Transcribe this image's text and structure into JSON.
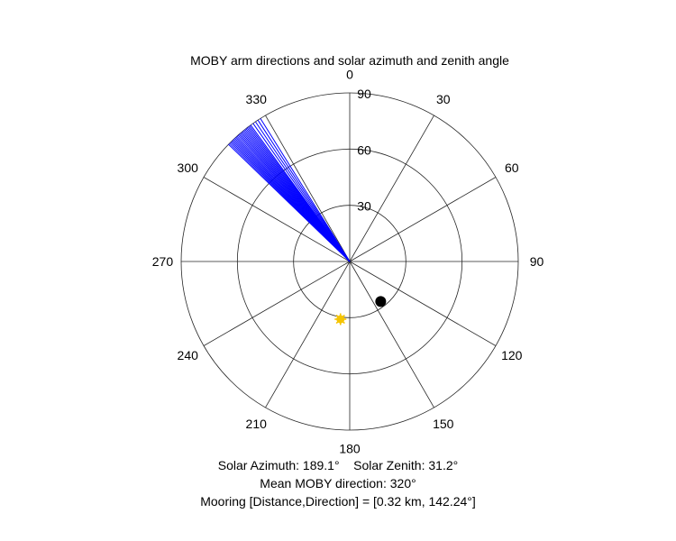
{
  "chart_data": {
    "type": "polar",
    "title": "MOBY arm directions and solar azimuth and zenith angle",
    "angle_ticks": [
      "0",
      "30",
      "60",
      "90",
      "120",
      "150",
      "180",
      "210",
      "240",
      "270",
      "300",
      "330"
    ],
    "radius_ticks": [
      "30",
      "60",
      "90"
    ],
    "radius_max": 90,
    "arm_directions_deg": [
      314,
      314.5,
      315,
      315.5,
      316,
      316.5,
      317,
      317.5,
      318,
      318.5,
      319,
      319.5,
      320,
      320.5,
      321,
      321.5,
      322,
      322.5,
      323,
      323.5,
      324,
      325,
      326,
      327,
      328
    ],
    "arm_length": 90,
    "sun": {
      "azimuth": 189.1,
      "zenith": 31.2,
      "color": "#f5c400"
    },
    "mooring": {
      "direction": 142.24,
      "radius": 27,
      "color": "#000000"
    },
    "arm_color": "#0000ff",
    "grid": true
  },
  "captions": {
    "solar": "Solar Azimuth: 189.1°    Solar Zenith: 31.2°",
    "moby": "Mean MOBY direction: 320°",
    "mooring": "Mooring [Distance,Direction] = [0.32 km, 142.24°]"
  }
}
